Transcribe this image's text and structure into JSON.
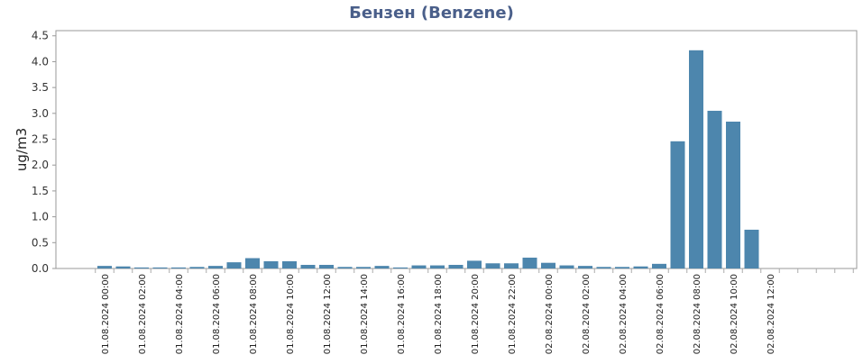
{
  "chart_data": {
    "type": "bar",
    "title": "Бензен (Benzene)",
    "ylabel": "ug/m3",
    "xlabel": "",
    "ylim": [
      0,
      4.6
    ],
    "yticks": [
      "0.0",
      "0.5",
      "1.0",
      "1.5",
      "2.0",
      "2.5",
      "3.0",
      "3.5",
      "4.0",
      "4.5"
    ],
    "x_ticks": [
      "01.08.2024 00:00",
      "01.08.2024 02:00",
      "01.08.2024 04:00",
      "01.08.2024 06:00",
      "01.08.2024 08:00",
      "01.08.2024 10:00",
      "01.08.2024 12:00",
      "01.08.2024 14:00",
      "01.08.2024 16:00",
      "01.08.2024 18:00",
      "01.08.2024 20:00",
      "01.08.2024 22:00",
      "02.08.2024 00:00",
      "02.08.2024 02:00",
      "02.08.2024 04:00",
      "02.08.2024 06:00",
      "02.08.2024 08:00",
      "02.08.2024 10:00",
      "02.08.2024 12:00"
    ],
    "categories": [
      "01.08.2024 00:00",
      "01.08.2024 01:00",
      "01.08.2024 02:00",
      "01.08.2024 03:00",
      "01.08.2024 04:00",
      "01.08.2024 05:00",
      "01.08.2024 06:00",
      "01.08.2024 07:00",
      "01.08.2024 08:00",
      "01.08.2024 09:00",
      "01.08.2024 10:00",
      "01.08.2024 11:00",
      "01.08.2024 12:00",
      "01.08.2024 13:00",
      "01.08.2024 14:00",
      "01.08.2024 15:00",
      "01.08.2024 16:00",
      "01.08.2024 17:00",
      "01.08.2024 18:00",
      "01.08.2024 19:00",
      "01.08.2024 20:00",
      "01.08.2024 21:00",
      "01.08.2024 22:00",
      "01.08.2024 23:00",
      "02.08.2024 00:00",
      "02.08.2024 01:00",
      "02.08.2024 02:00",
      "02.08.2024 03:00",
      "02.08.2024 04:00",
      "02.08.2024 05:00",
      "02.08.2024 06:00",
      "02.08.2024 07:00",
      "02.08.2024 08:00",
      "02.08.2024 09:00",
      "02.08.2024 10:00",
      "02.08.2024 11:00"
    ],
    "values": [
      0.05,
      0.04,
      0.02,
      0.02,
      0.02,
      0.03,
      0.05,
      0.12,
      0.2,
      0.14,
      0.14,
      0.07,
      0.07,
      0.03,
      0.03,
      0.05,
      0.02,
      0.06,
      0.06,
      0.07,
      0.15,
      0.1,
      0.1,
      0.21,
      0.11,
      0.06,
      0.05,
      0.03,
      0.03,
      0.04,
      0.09,
      2.46,
      4.22,
      3.05,
      2.84,
      0.75
    ],
    "bar_color": "#4d86ad",
    "grid": false
  }
}
